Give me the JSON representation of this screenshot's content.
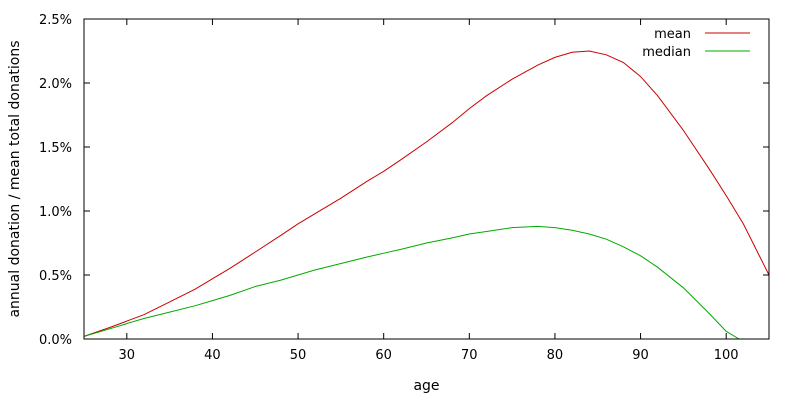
{
  "chart_data": {
    "type": "line",
    "title": "",
    "xlabel": "age",
    "ylabel": "annual donation / mean total donations",
    "xlim": [
      25,
      105
    ],
    "ylim": [
      0,
      2.5
    ],
    "x_ticks": [
      30,
      40,
      50,
      60,
      70,
      80,
      90,
      100
    ],
    "y_ticks": [
      0,
      0.5,
      1.0,
      1.5,
      2.0,
      2.5
    ],
    "x_tick_labels": [
      "30",
      "40",
      "50",
      "60",
      "70",
      "80",
      "90",
      "100"
    ],
    "y_tick_labels": [
      "0.0%",
      "0.5%",
      "1.0%",
      "1.5%",
      "2.0%",
      "2.5%"
    ],
    "grid": false,
    "legend_position": "top-right",
    "series": [
      {
        "name": "mean",
        "color": "#cc0000",
        "x": [
          25,
          28,
          30,
          32,
          35,
          38,
          40,
          42,
          45,
          48,
          50,
          52,
          55,
          58,
          60,
          62,
          65,
          68,
          70,
          72,
          75,
          78,
          80,
          82,
          84,
          86,
          88,
          90,
          92,
          95,
          98,
          100,
          102,
          105
        ],
        "y": [
          0.02,
          0.09,
          0.14,
          0.19,
          0.29,
          0.39,
          0.47,
          0.55,
          0.68,
          0.81,
          0.9,
          0.98,
          1.1,
          1.23,
          1.31,
          1.4,
          1.54,
          1.69,
          1.8,
          1.9,
          2.03,
          2.14,
          2.2,
          2.24,
          2.25,
          2.22,
          2.16,
          2.05,
          1.9,
          1.63,
          1.33,
          1.12,
          0.9,
          0.5
        ]
      },
      {
        "name": "median",
        "color": "#00aa00",
        "x": [
          25,
          28,
          30,
          32,
          35,
          38,
          40,
          42,
          45,
          48,
          50,
          52,
          55,
          58,
          60,
          62,
          65,
          68,
          70,
          72,
          75,
          78,
          80,
          82,
          84,
          86,
          88,
          90,
          92,
          95,
          98,
          100,
          101.5
        ],
        "y": [
          0.02,
          0.08,
          0.12,
          0.16,
          0.21,
          0.26,
          0.3,
          0.34,
          0.41,
          0.46,
          0.5,
          0.54,
          0.59,
          0.64,
          0.67,
          0.7,
          0.75,
          0.79,
          0.82,
          0.84,
          0.87,
          0.88,
          0.87,
          0.85,
          0.82,
          0.78,
          0.72,
          0.65,
          0.56,
          0.4,
          0.2,
          0.06,
          0.0
        ]
      }
    ]
  }
}
